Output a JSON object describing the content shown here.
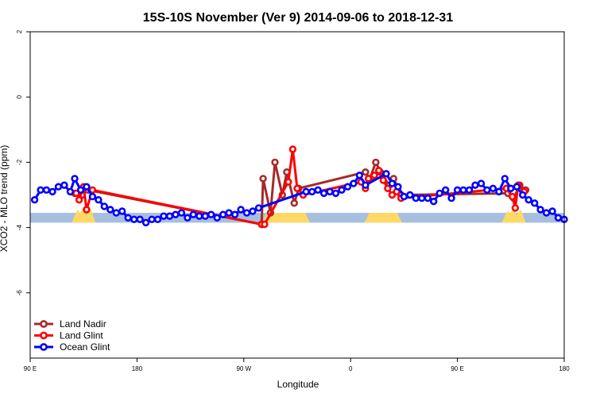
{
  "chart_data": {
    "type": "line",
    "title": "15S-10S November (Ver 9)   2014-09-06 to 2018-12-31",
    "xlabel": "Longitude",
    "ylabel": "XCO2 - MLO trend (ppm)",
    "xlim": [
      0,
      360
    ],
    "ylim": [
      -8,
      2
    ],
    "x_ticks": [
      {
        "value": 0,
        "label": "90 E"
      },
      {
        "value": 72,
        "label": "180"
      },
      {
        "value": 144,
        "label": "90 W"
      },
      {
        "value": 216,
        "label": "0"
      },
      {
        "value": 288,
        "label": "90 E"
      },
      {
        "value": 360,
        "label": "180"
      }
    ],
    "y_ticks": [
      {
        "value": 2,
        "label": "2"
      },
      {
        "value": 0,
        "label": "0"
      },
      {
        "value": -2,
        "label": "-2"
      },
      {
        "value": -4,
        "label": "-4"
      },
      {
        "value": -6,
        "label": "-6"
      }
    ],
    "grid": false,
    "legend_position": "bottom-left",
    "surface_band": {
      "y_range": [
        -3.85,
        -3.55
      ],
      "ocean_color": "#a7bfdf",
      "land_color": "#ffd966",
      "land_segments": [
        [
          158,
          187
        ],
        [
          227,
          249
        ]
      ],
      "land_bumps": [
        {
          "x": [
            28,
            44
          ],
          "peak": -3.35
        },
        {
          "x": [
            318,
            334
          ],
          "peak": -3.4
        }
      ]
    },
    "series": [
      {
        "name": "Land Nadir",
        "color": "#a52a2a",
        "points": [
          [
            30,
            -2.95
          ],
          [
            35,
            -3.0
          ],
          [
            39,
            -2.85
          ],
          [
            156,
            -3.9
          ],
          [
            157,
            -2.5
          ],
          [
            162,
            -3.55
          ],
          [
            165,
            -2.0
          ],
          [
            170,
            -3.0
          ],
          [
            173,
            -2.3
          ],
          [
            178,
            -3.25
          ],
          [
            181,
            -2.8
          ],
          [
            226,
            -2.3
          ],
          [
            229,
            -2.5
          ],
          [
            233,
            -2.0
          ],
          [
            236,
            -2.3
          ],
          [
            242,
            -2.7
          ],
          [
            245,
            -2.5
          ],
          [
            250,
            -3.0
          ],
          [
            322,
            -2.95
          ],
          [
            326,
            -3.1
          ],
          [
            330,
            -2.7
          ],
          [
            334,
            -2.85
          ]
        ]
      },
      {
        "name": "Land Glint",
        "color": "#ff0000",
        "points": [
          [
            31,
            -2.95
          ],
          [
            33,
            -3.15
          ],
          [
            36,
            -2.75
          ],
          [
            38,
            -3.45
          ],
          [
            42,
            -2.85
          ],
          [
            156,
            -3.9
          ],
          [
            158,
            -3.9
          ],
          [
            174,
            -2.6
          ],
          [
            177,
            -1.6
          ],
          [
            180,
            -2.8
          ],
          [
            184,
            -3.0
          ],
          [
            223,
            -2.6
          ],
          [
            226,
            -2.8
          ],
          [
            228,
            -2.5
          ],
          [
            232,
            -2.4
          ],
          [
            235,
            -2.25
          ],
          [
            238,
            -2.55
          ],
          [
            241,
            -2.8
          ],
          [
            244,
            -3.0
          ],
          [
            247,
            -2.9
          ],
          [
            250,
            -3.1
          ],
          [
            321,
            -2.8
          ],
          [
            325,
            -3.05
          ],
          [
            327,
            -3.4
          ],
          [
            329,
            -2.7
          ],
          [
            333,
            -2.9
          ]
        ]
      },
      {
        "name": "Ocean Glint",
        "color": "#0000ff",
        "points": [
          [
            3,
            -3.15
          ],
          [
            7,
            -2.85
          ],
          [
            11,
            -2.85
          ],
          [
            15,
            -2.9
          ],
          [
            19,
            -2.75
          ],
          [
            23,
            -2.7
          ],
          [
            27,
            -2.9
          ],
          [
            30,
            -2.5
          ],
          [
            34,
            -2.85
          ],
          [
            38,
            -2.75
          ],
          [
            42,
            -3.05
          ],
          [
            46,
            -3.15
          ],
          [
            50,
            -3.35
          ],
          [
            54,
            -3.45
          ],
          [
            58,
            -3.55
          ],
          [
            62,
            -3.5
          ],
          [
            66,
            -3.7
          ],
          [
            70,
            -3.75
          ],
          [
            74,
            -3.75
          ],
          [
            78,
            -3.85
          ],
          [
            82,
            -3.75
          ],
          [
            86,
            -3.75
          ],
          [
            90,
            -3.65
          ],
          [
            94,
            -3.65
          ],
          [
            98,
            -3.6
          ],
          [
            102,
            -3.55
          ],
          [
            106,
            -3.7
          ],
          [
            110,
            -3.6
          ],
          [
            114,
            -3.65
          ],
          [
            118,
            -3.65
          ],
          [
            122,
            -3.6
          ],
          [
            126,
            -3.7
          ],
          [
            130,
            -3.6
          ],
          [
            134,
            -3.55
          ],
          [
            138,
            -3.6
          ],
          [
            142,
            -3.45
          ],
          [
            146,
            -3.55
          ],
          [
            150,
            -3.5
          ],
          [
            154,
            -3.4
          ],
          [
            186,
            -2.9
          ],
          [
            190,
            -2.9
          ],
          [
            194,
            -2.85
          ],
          [
            198,
            -2.95
          ],
          [
            202,
            -2.9
          ],
          [
            206,
            -2.95
          ],
          [
            210,
            -2.85
          ],
          [
            214,
            -2.75
          ],
          [
            218,
            -2.65
          ],
          [
            222,
            -2.4
          ],
          [
            226,
            -2.7
          ],
          [
            240,
            -2.35
          ],
          [
            244,
            -2.65
          ],
          [
            248,
            -2.75
          ],
          [
            252,
            -3.05
          ],
          [
            256,
            -3.0
          ],
          [
            260,
            -3.1
          ],
          [
            264,
            -3.1
          ],
          [
            268,
            -3.1
          ],
          [
            272,
            -3.2
          ],
          [
            276,
            -2.95
          ],
          [
            280,
            -2.85
          ],
          [
            284,
            -3.1
          ],
          [
            288,
            -2.85
          ],
          [
            292,
            -2.85
          ],
          [
            296,
            -2.85
          ],
          [
            300,
            -2.7
          ],
          [
            304,
            -2.65
          ],
          [
            308,
            -2.85
          ],
          [
            312,
            -2.8
          ],
          [
            316,
            -2.9
          ],
          [
            320,
            -2.5
          ],
          [
            324,
            -2.8
          ],
          [
            328,
            -2.75
          ],
          [
            332,
            -3.0
          ],
          [
            336,
            -3.15
          ],
          [
            340,
            -3.25
          ],
          [
            344,
            -3.45
          ],
          [
            348,
            -3.55
          ],
          [
            352,
            -3.5
          ],
          [
            356,
            -3.7
          ],
          [
            360,
            -3.75
          ]
        ]
      }
    ]
  }
}
